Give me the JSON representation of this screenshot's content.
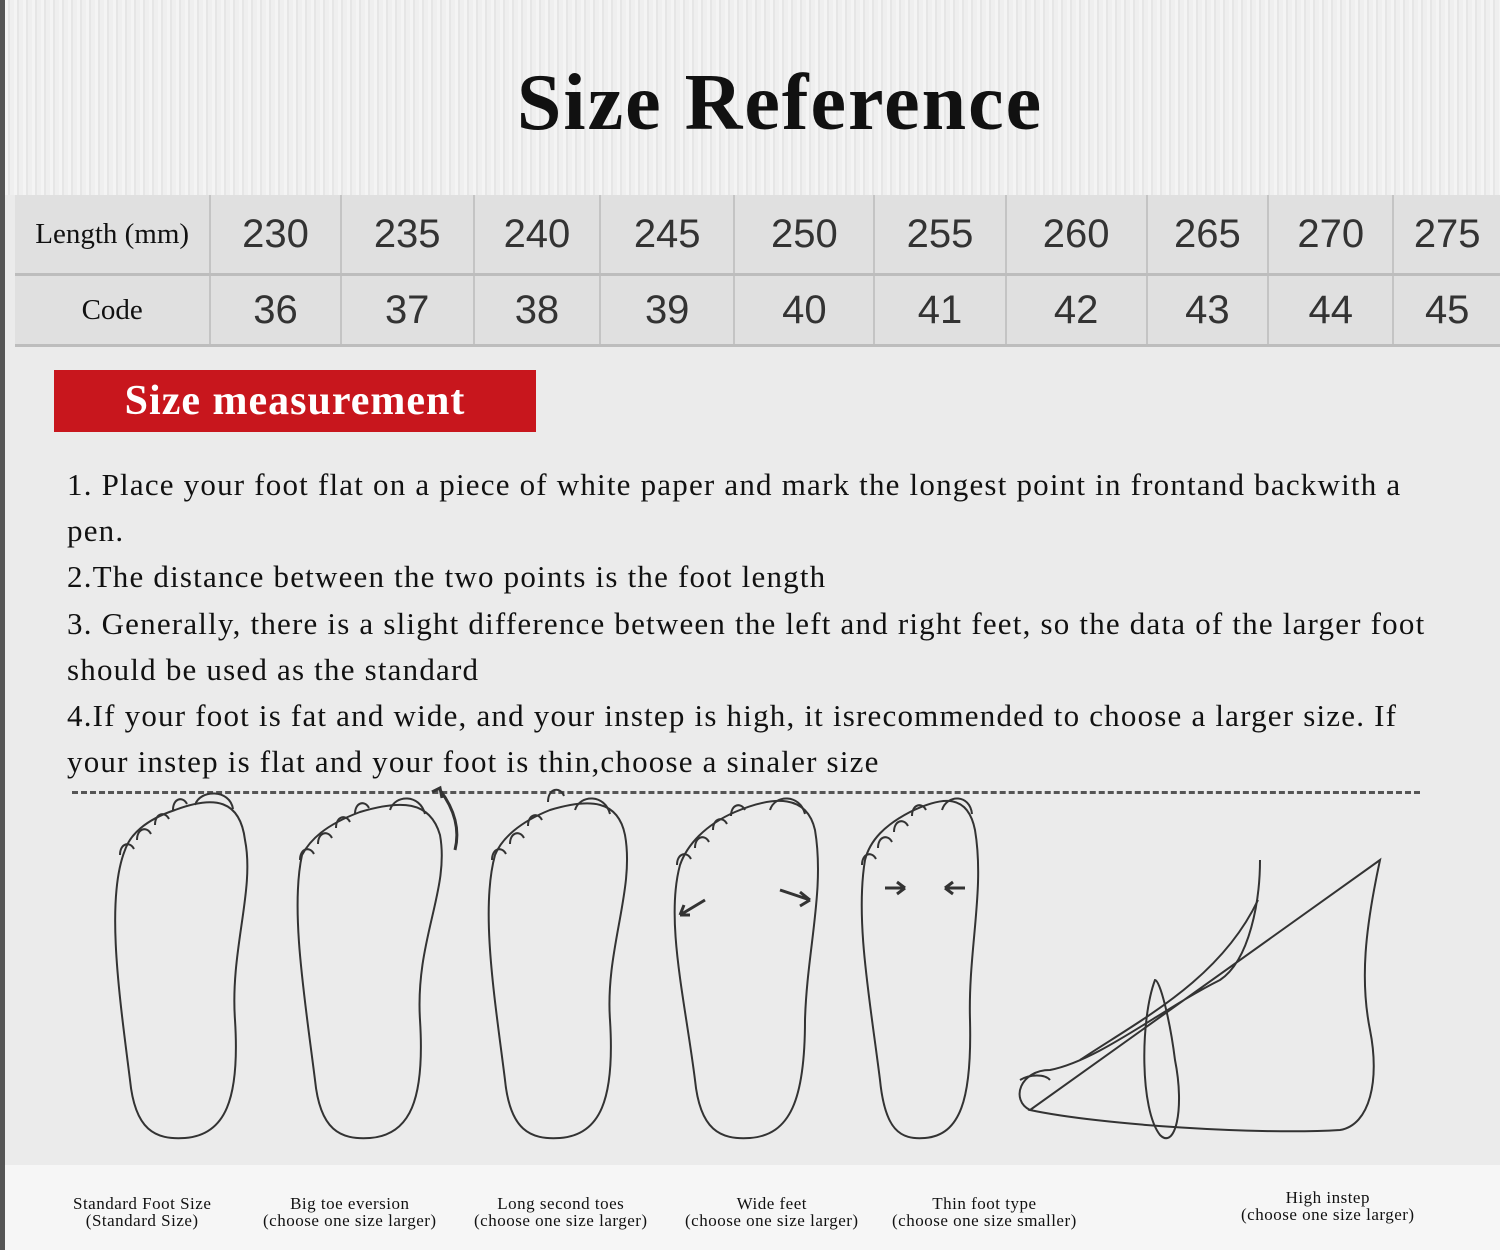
{
  "title": "Size Reference",
  "table": {
    "row_labels": [
      "Length (mm)",
      "Code"
    ],
    "lengths": [
      "230",
      "235",
      "240",
      "245",
      "250",
      "255",
      "260",
      "265",
      "270",
      "275"
    ],
    "codes": [
      "36",
      "37",
      "38",
      "39",
      "40",
      "41",
      "42",
      "43",
      "44",
      "45"
    ]
  },
  "badge": {
    "label": "Size measurement",
    "color": "#c8161d"
  },
  "steps": [
    "1. Place your foot flat on a piece of white paper and mark the longest point in frontand backwith a pen.",
    "2.The distance between the two points is the foot length",
    "3. Generally, there is a slight difference between the left and right feet, so the data of the larger foot should be used as the standard",
    "4.If your foot is fat and wide, and your instep is high, it isrecommended to choose a larger size. If your instep is flat and your foot is thin,choose a sinaler size"
  ],
  "captions": [
    {
      "line1": "Standard Foot Size",
      "line2": "(Standard Size)"
    },
    {
      "line1": "Big toe eversion",
      "line2": "(choose one size larger)"
    },
    {
      "line1": "Long second toes",
      "line2": "(choose one size larger)"
    },
    {
      "line1": "Wide feet",
      "line2": "(choose one size larger)"
    },
    {
      "line1": "Thin foot type",
      "line2": "(choose one size smaller)"
    },
    {
      "line1": "High instep",
      "line2": "(choose one size larger)"
    }
  ]
}
